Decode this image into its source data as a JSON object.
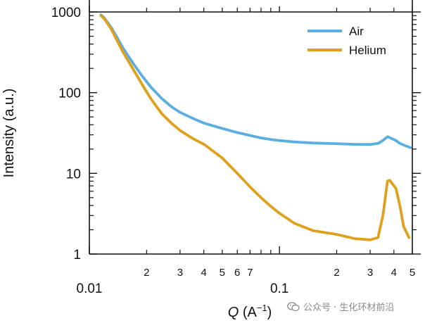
{
  "chart_data": {
    "type": "line",
    "xscale": "log",
    "yscale": "log",
    "xlim": [
      0.01,
      0.5
    ],
    "ylim": [
      1,
      1000
    ],
    "xlabel_symbol": "Q",
    "xlabel_unit": "(A",
    "xlabel_exp": "−1",
    "xlabel_close": ")",
    "ylabel": "Intensity (a.u.)",
    "x_major_ticks": [
      {
        "value": 0.01,
        "label": "0.01"
      },
      {
        "value": 0.1,
        "label": "0.1"
      }
    ],
    "x_minor_ticks": [
      {
        "value": 0.02,
        "label": "2"
      },
      {
        "value": 0.03,
        "label": "3"
      },
      {
        "value": 0.04,
        "label": "4"
      },
      {
        "value": 0.05,
        "label": "5"
      },
      {
        "value": 0.06,
        "label": "6"
      },
      {
        "value": 0.07,
        "label": "7"
      },
      {
        "value": 0.08,
        "label": ""
      },
      {
        "value": 0.09,
        "label": ""
      },
      {
        "value": 0.2,
        "label": "2"
      },
      {
        "value": 0.3,
        "label": "3"
      },
      {
        "value": 0.4,
        "label": "4"
      },
      {
        "value": 0.5,
        "label": "5"
      }
    ],
    "y_major_ticks": [
      {
        "value": 1,
        "label": "1"
      },
      {
        "value": 10,
        "label": "10"
      },
      {
        "value": 100,
        "label": "100"
      },
      {
        "value": 1000,
        "label": "1000"
      }
    ],
    "legend_position": "top-right",
    "series": [
      {
        "name": "Air",
        "color": "#5aafe0",
        "points": [
          [
            0.0115,
            920
          ],
          [
            0.012,
            840
          ],
          [
            0.013,
            650
          ],
          [
            0.014,
            480
          ],
          [
            0.015,
            360
          ],
          [
            0.017,
            230
          ],
          [
            0.019,
            160
          ],
          [
            0.021,
            118
          ],
          [
            0.024,
            85
          ],
          [
            0.027,
            67
          ],
          [
            0.03,
            57
          ],
          [
            0.035,
            48
          ],
          [
            0.04,
            42
          ],
          [
            0.05,
            36
          ],
          [
            0.06,
            32
          ],
          [
            0.07,
            29.5
          ],
          [
            0.08,
            27.5
          ],
          [
            0.09,
            26.3
          ],
          [
            0.1,
            25.5
          ],
          [
            0.12,
            24.5
          ],
          [
            0.15,
            23.8
          ],
          [
            0.2,
            23.3
          ],
          [
            0.25,
            22.9
          ],
          [
            0.3,
            22.8
          ],
          [
            0.33,
            23.5
          ],
          [
            0.35,
            25.5
          ],
          [
            0.37,
            28.5
          ],
          [
            0.39,
            27
          ],
          [
            0.41,
            25.5
          ],
          [
            0.43,
            23.5
          ],
          [
            0.46,
            22
          ],
          [
            0.49,
            20.8
          ]
        ]
      },
      {
        "name": "Helium",
        "color": "#dfa11d",
        "points": [
          [
            0.0115,
            900
          ],
          [
            0.012,
            820
          ],
          [
            0.013,
            620
          ],
          [
            0.014,
            440
          ],
          [
            0.015,
            320
          ],
          [
            0.017,
            195
          ],
          [
            0.019,
            125
          ],
          [
            0.021,
            85
          ],
          [
            0.024,
            55
          ],
          [
            0.027,
            42
          ],
          [
            0.03,
            34
          ],
          [
            0.035,
            27
          ],
          [
            0.04,
            23
          ],
          [
            0.05,
            15.5
          ],
          [
            0.06,
            10
          ],
          [
            0.07,
            6.8
          ],
          [
            0.08,
            5
          ],
          [
            0.09,
            3.9
          ],
          [
            0.1,
            3.2
          ],
          [
            0.12,
            2.4
          ],
          [
            0.15,
            1.95
          ],
          [
            0.2,
            1.75
          ],
          [
            0.25,
            1.55
          ],
          [
            0.3,
            1.5
          ],
          [
            0.33,
            1.6
          ],
          [
            0.35,
            3
          ],
          [
            0.37,
            8
          ],
          [
            0.38,
            8.2
          ],
          [
            0.41,
            6.5
          ],
          [
            0.43,
            4
          ],
          [
            0.45,
            2.2
          ],
          [
            0.48,
            1.6
          ]
        ]
      }
    ]
  },
  "watermark": {
    "text": "公众号 · 生化环材前沿"
  }
}
